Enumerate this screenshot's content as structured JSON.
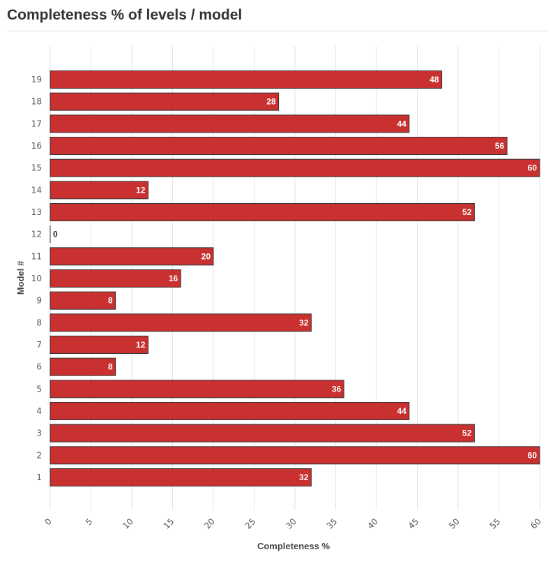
{
  "page": {
    "title": "Completeness % of levels / model"
  },
  "chart_data": {
    "type": "bar",
    "orientation": "horizontal",
    "title": "Completeness % of levels / model",
    "xlabel": "Completeness %",
    "ylabel": "Model #",
    "categories": [
      "1",
      "2",
      "3",
      "4",
      "5",
      "6",
      "7",
      "8",
      "9",
      "10",
      "11",
      "12",
      "13",
      "14",
      "15",
      "16",
      "17",
      "18",
      "19"
    ],
    "values": [
      32,
      60,
      52,
      44,
      36,
      8,
      12,
      32,
      8,
      16,
      20,
      0,
      52,
      12,
      60,
      56,
      44,
      28,
      48
    ],
    "xlim": [
      0,
      60
    ],
    "xticks": [
      "0",
      "5",
      "10",
      "15",
      "20",
      "25",
      "30",
      "35",
      "40",
      "45",
      "50",
      "55",
      "60"
    ],
    "grid": true,
    "bar_color": "#c93030",
    "bar_edge_color": "#333333",
    "data_label_color": "#ffffff",
    "zero_label_color": "#222222"
  }
}
